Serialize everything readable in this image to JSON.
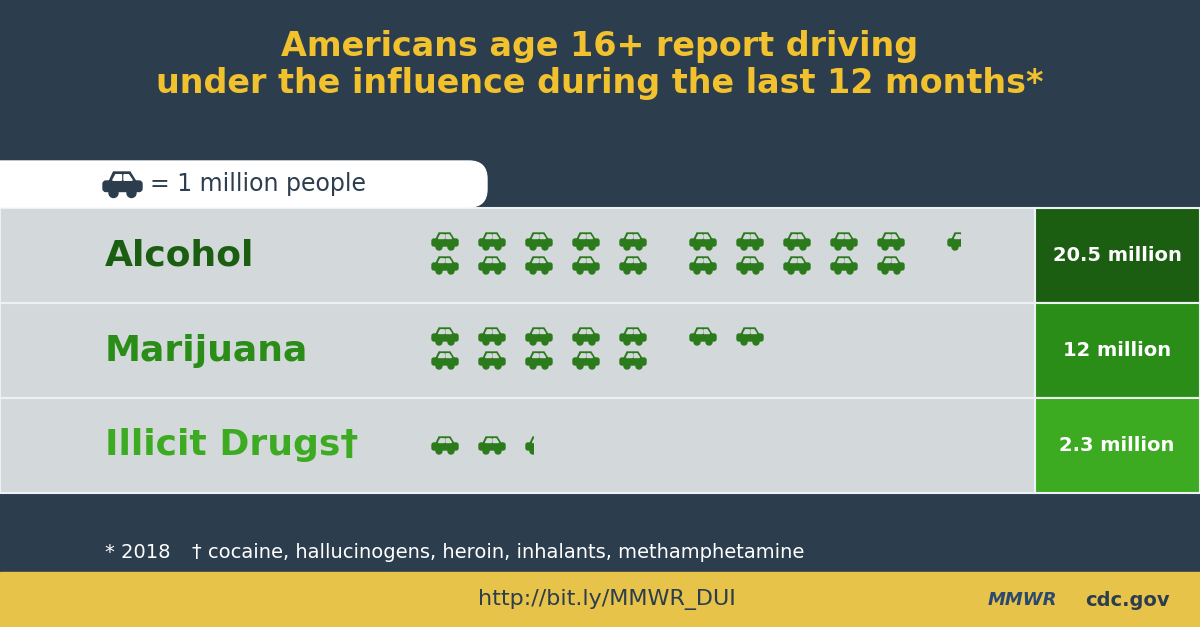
{
  "chart_data": {
    "type": "pictogram",
    "title": "Americans age 16+ report driving\nunder the influence during the last 12 months*",
    "unit_label": "= 1 million people",
    "unit_value": 1,
    "categories": [
      "Alcohol",
      "Marijuana",
      "Illicit Drugs†"
    ],
    "values": [
      20.5,
      12,
      2.3
    ],
    "value_labels": [
      "20.5 million",
      "12 million",
      "2.3 million"
    ],
    "data_labels": true,
    "colors": [
      "#1b5e12",
      "#2a8d18",
      "#3dab22"
    ],
    "footnotes": [
      "* 2018",
      "† cocaine, hallucinogens, heroin, inhalants, methamphetamine"
    ],
    "source": {
      "url": "http://bit.ly/MMWR_DUI",
      "publisher": "MMWR",
      "site": "cdc.gov"
    }
  }
}
